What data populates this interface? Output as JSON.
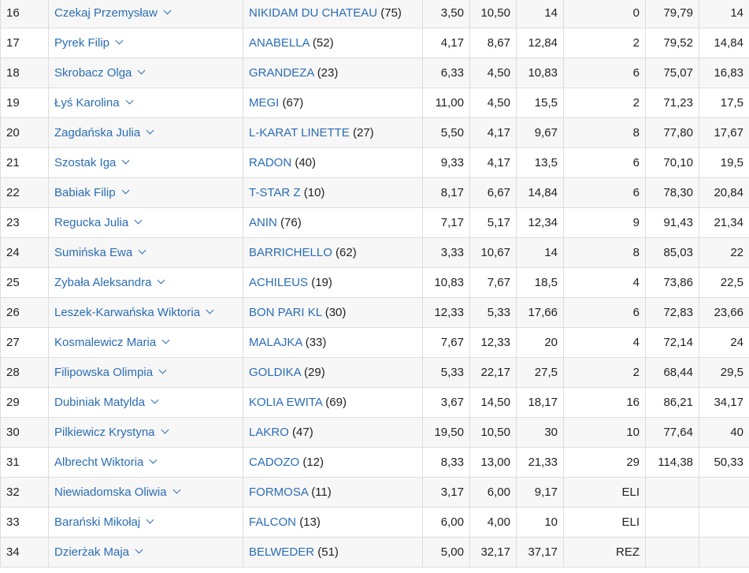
{
  "rows": [
    {
      "pos": "16",
      "rider": "Czekaj Przemysław",
      "horse": "NIKIDAM DU CHATEAU",
      "age": "(75)",
      "c1": "3,50",
      "c2": "10,50",
      "c3": "14",
      "c4": "0",
      "c5": "79,79",
      "c6": "14"
    },
    {
      "pos": "17",
      "rider": "Pyrek Filip",
      "horse": "ANABELLA",
      "age": "(52)",
      "c1": "4,17",
      "c2": "8,67",
      "c3": "12,84",
      "c4": "2",
      "c5": "79,52",
      "c6": "14,84"
    },
    {
      "pos": "18",
      "rider": "Skrobacz Olga",
      "horse": "GRANDEZA",
      "age": "(23)",
      "c1": "6,33",
      "c2": "4,50",
      "c3": "10,83",
      "c4": "6",
      "c5": "75,07",
      "c6": "16,83"
    },
    {
      "pos": "19",
      "rider": "Łyś Karolina",
      "horse": "MEGI",
      "age": "(67)",
      "c1": "11,00",
      "c2": "4,50",
      "c3": "15,5",
      "c4": "2",
      "c5": "71,23",
      "c6": "17,5"
    },
    {
      "pos": "20",
      "rider": "Zagdańska Julia",
      "horse": "L-KARAT LINETTE",
      "age": "(27)",
      "c1": "5,50",
      "c2": "4,17",
      "c3": "9,67",
      "c4": "8",
      "c5": "77,80",
      "c6": "17,67"
    },
    {
      "pos": "21",
      "rider": "Szostak Iga",
      "horse": "RADON",
      "age": "(40)",
      "c1": "9,33",
      "c2": "4,17",
      "c3": "13,5",
      "c4": "6",
      "c5": "70,10",
      "c6": "19,5"
    },
    {
      "pos": "22",
      "rider": "Babiak Filip",
      "horse": "T-STAR Z",
      "age": "(10)",
      "c1": "8,17",
      "c2": "6,67",
      "c3": "14,84",
      "c4": "6",
      "c5": "78,30",
      "c6": "20,84"
    },
    {
      "pos": "23",
      "rider": "Regucka Julia",
      "horse": "ANIN",
      "age": "(76)",
      "c1": "7,17",
      "c2": "5,17",
      "c3": "12,34",
      "c4": "9",
      "c5": "91,43",
      "c6": "21,34"
    },
    {
      "pos": "24",
      "rider": "Sumińska Ewa",
      "horse": "BARRICHELLO",
      "age": "(62)",
      "c1": "3,33",
      "c2": "10,67",
      "c3": "14",
      "c4": "8",
      "c5": "85,03",
      "c6": "22"
    },
    {
      "pos": "25",
      "rider": "Zybała Aleksandra",
      "horse": "ACHILEUS",
      "age": "(19)",
      "c1": "10,83",
      "c2": "7,67",
      "c3": "18,5",
      "c4": "4",
      "c5": "73,86",
      "c6": "22,5"
    },
    {
      "pos": "26",
      "rider": "Leszek-Karwańska Wiktoria",
      "horse": "BON PARI KL",
      "age": "(30)",
      "c1": "12,33",
      "c2": "5,33",
      "c3": "17,66",
      "c4": "6",
      "c5": "72,83",
      "c6": "23,66"
    },
    {
      "pos": "27",
      "rider": "Kosmalewicz Maria",
      "horse": "MALAJKA",
      "age": "(33)",
      "c1": "7,67",
      "c2": "12,33",
      "c3": "20",
      "c4": "4",
      "c5": "72,14",
      "c6": "24"
    },
    {
      "pos": "28",
      "rider": "Filipowska Olimpia",
      "horse": "GOLDIKA",
      "age": "(29)",
      "c1": "5,33",
      "c2": "22,17",
      "c3": "27,5",
      "c4": "2",
      "c5": "68,44",
      "c6": "29,5"
    },
    {
      "pos": "29",
      "rider": "Dubiniak Matylda",
      "horse": "KOLIA EWITA",
      "age": "(69)",
      "c1": "3,67",
      "c2": "14,50",
      "c3": "18,17",
      "c4": "16",
      "c5": "86,21",
      "c6": "34,17"
    },
    {
      "pos": "30",
      "rider": "Pilkiewicz Krystyna",
      "horse": "LAKRO",
      "age": "(47)",
      "c1": "19,50",
      "c2": "10,50",
      "c3": "30",
      "c4": "10",
      "c5": "77,64",
      "c6": "40"
    },
    {
      "pos": "31",
      "rider": "Albrecht Wiktoria",
      "horse": "CADOZO",
      "age": "(12)",
      "c1": "8,33",
      "c2": "13,00",
      "c3": "21,33",
      "c4": "29",
      "c5": "114,38",
      "c6": "50,33"
    },
    {
      "pos": "32",
      "rider": "Niewiadomska Oliwia",
      "horse": "FORMOSA",
      "age": "(11)",
      "c1": "3,17",
      "c2": "6,00",
      "c3": "9,17",
      "c4": "ELI",
      "c5": "",
      "c6": ""
    },
    {
      "pos": "33",
      "rider": "Barański Mikołaj",
      "horse": "FALCON",
      "age": "(13)",
      "c1": "6,00",
      "c2": "4,00",
      "c3": "10",
      "c4": "ELI",
      "c5": "",
      "c6": ""
    },
    {
      "pos": "34",
      "rider": "Dzierżak Maja",
      "horse": "BELWEDER",
      "age": "(51)",
      "c1": "5,00",
      "c2": "32,17",
      "c3": "37,17",
      "c4": "REZ",
      "c5": "",
      "c6": ""
    }
  ]
}
